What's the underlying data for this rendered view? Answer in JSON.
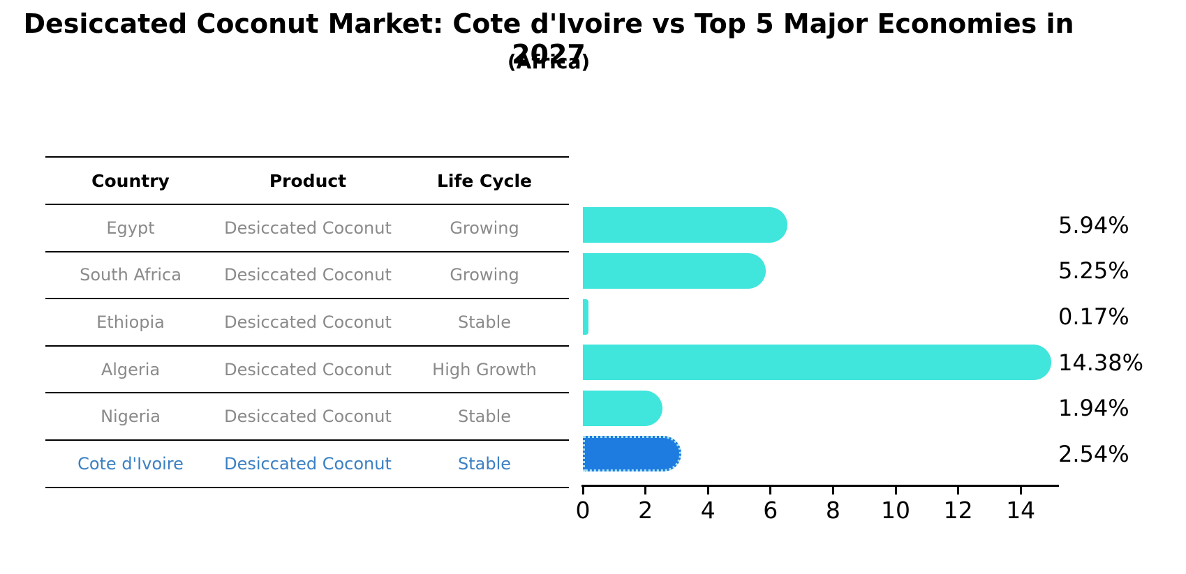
{
  "title": "Desiccated Coconut Market: Cote d'Ivoire vs Top 5 Major Economies in 2027",
  "subtitle": "(Africa)",
  "table": {
    "headers": [
      "Country",
      "Product",
      "Life Cycle"
    ],
    "rows": [
      [
        "Egypt",
        "Desiccated Coconut",
        "Growing"
      ],
      [
        "South Africa",
        "Desiccated Coconut",
        "Growing"
      ],
      [
        "Ethiopia",
        "Desiccated Coconut",
        "Stable"
      ],
      [
        "Algeria",
        "Desiccated Coconut",
        "High Growth"
      ],
      [
        "Nigeria",
        "Desiccated Coconut",
        "Stable"
      ],
      [
        "Cote d'Ivoire",
        "Desiccated Coconut",
        "Stable"
      ]
    ],
    "highlight_index": 5
  },
  "chart_data": {
    "type": "bar",
    "orientation": "horizontal",
    "categories": [
      "Egypt",
      "South Africa",
      "Ethiopia",
      "Algeria",
      "Nigeria",
      "Cote d'Ivoire"
    ],
    "values": [
      5.94,
      5.25,
      0.17,
      14.38,
      1.94,
      2.54
    ],
    "value_labels": [
      "5.94%",
      "5.25%",
      "0.17%",
      "14.38%",
      "1.94%",
      "2.54%"
    ],
    "x_ticks": [
      0,
      2,
      4,
      6,
      8,
      10,
      12,
      14
    ],
    "xlim": [
      0,
      15.2
    ],
    "grid": false,
    "legend": false,
    "bar_color": "#40e5dc",
    "highlight_color": "#1e7be0",
    "highlight_edge_color": "#a5e2f2",
    "highlight_index": 5
  },
  "colors": {
    "background": "#ffffff",
    "table_line": "#000000",
    "row_text": "#8a8a8a",
    "highlight_text": "#3b80c4",
    "axis": "#000000"
  }
}
